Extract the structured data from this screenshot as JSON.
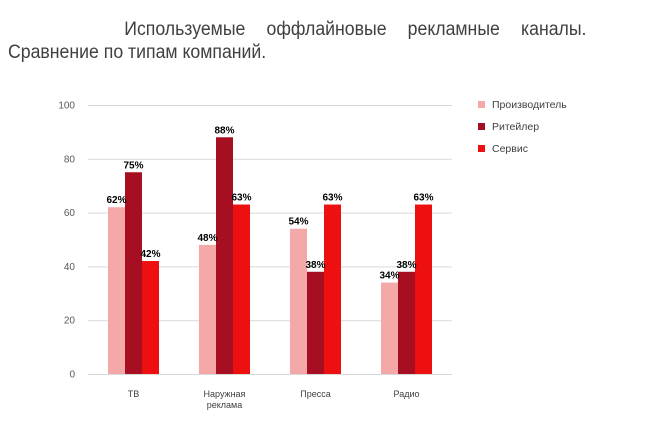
{
  "title": "Используемые оффлайновые рекламные каналы. Сравнение по типам компаний.",
  "chart_data": {
    "type": "bar",
    "title": "Используемые оффлайновые рекламные каналы. Сравнение по типам компаний.",
    "categories": [
      [
        "ТВ"
      ],
      [
        "Наружная",
        "реклама"
      ],
      [
        "Пресса"
      ],
      [
        "Радио"
      ]
    ],
    "series": [
      {
        "name": "Производитель",
        "color": "#f4a9a8",
        "values": [
          62,
          48,
          54,
          34
        ],
        "labels": [
          "62%",
          "48%",
          "54%",
          "34%"
        ]
      },
      {
        "name": "Ритейлер",
        "color": "#a50f21",
        "values": [
          75,
          88,
          38,
          38
        ],
        "labels": [
          "75%",
          "88%",
          "38%",
          "38%"
        ]
      },
      {
        "name": "Сервис",
        "color": "#ee1010",
        "values": [
          42,
          63,
          63,
          63
        ],
        "labels": [
          "42%",
          "63%",
          "63%",
          "63%"
        ]
      }
    ],
    "yticks": [
      "0",
      "20",
      "40",
      "60",
      "80",
      "100"
    ],
    "ylim": [
      0,
      100
    ],
    "grid": true,
    "legend": "right",
    "gridColor": "#d9d9d9"
  }
}
